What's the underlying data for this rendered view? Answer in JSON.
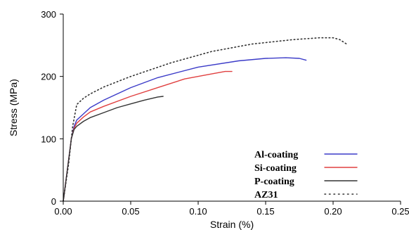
{
  "chart_data": {
    "type": "line",
    "xlabel": "Strain (%)",
    "ylabel": "Stress (MPa)",
    "xlim": [
      0,
      0.25
    ],
    "ylim": [
      0,
      300
    ],
    "xticks": [
      "0.00",
      "0.05",
      "0.10",
      "0.15",
      "0.20",
      "0.25"
    ],
    "yticks": [
      "0",
      "100",
      "200",
      "300"
    ],
    "grid": false,
    "legend_position": "bottom-right",
    "series": [
      {
        "name": "Al-coating",
        "color": "#3b3bc8",
        "style": "solid",
        "x": [
          0,
          0.003,
          0.006,
          0.008,
          0.01,
          0.015,
          0.02,
          0.03,
          0.05,
          0.07,
          0.1,
          0.13,
          0.15,
          0.165,
          0.175,
          0.18
        ],
        "y": [
          0,
          50,
          100,
          120,
          130,
          140,
          150,
          162,
          182,
          198,
          215,
          225,
          229,
          230,
          229,
          226
        ]
      },
      {
        "name": "Si-coating",
        "color": "#e04040",
        "style": "solid",
        "x": [
          0,
          0.003,
          0.006,
          0.008,
          0.01,
          0.015,
          0.02,
          0.03,
          0.05,
          0.07,
          0.09,
          0.11,
          0.12,
          0.125
        ],
        "y": [
          0,
          50,
          100,
          117,
          125,
          135,
          143,
          152,
          168,
          182,
          196,
          204,
          208,
          208
        ]
      },
      {
        "name": "P-coating",
        "color": "#333333",
        "style": "solid",
        "x": [
          0,
          0.003,
          0.006,
          0.008,
          0.01,
          0.015,
          0.02,
          0.03,
          0.04,
          0.05,
          0.06,
          0.07,
          0.074
        ],
        "y": [
          0,
          50,
          100,
          115,
          120,
          128,
          134,
          142,
          150,
          156,
          162,
          167,
          168
        ]
      },
      {
        "name": "AZ31",
        "color": "#333333",
        "style": "dotted",
        "x": [
          0,
          0.004,
          0.007,
          0.01,
          0.015,
          0.02,
          0.03,
          0.05,
          0.08,
          0.11,
          0.14,
          0.17,
          0.19,
          0.2,
          0.205,
          0.21
        ],
        "y": [
          0,
          60,
          120,
          155,
          165,
          172,
          183,
          200,
          222,
          240,
          252,
          259,
          262,
          262,
          259,
          252
        ]
      }
    ]
  }
}
